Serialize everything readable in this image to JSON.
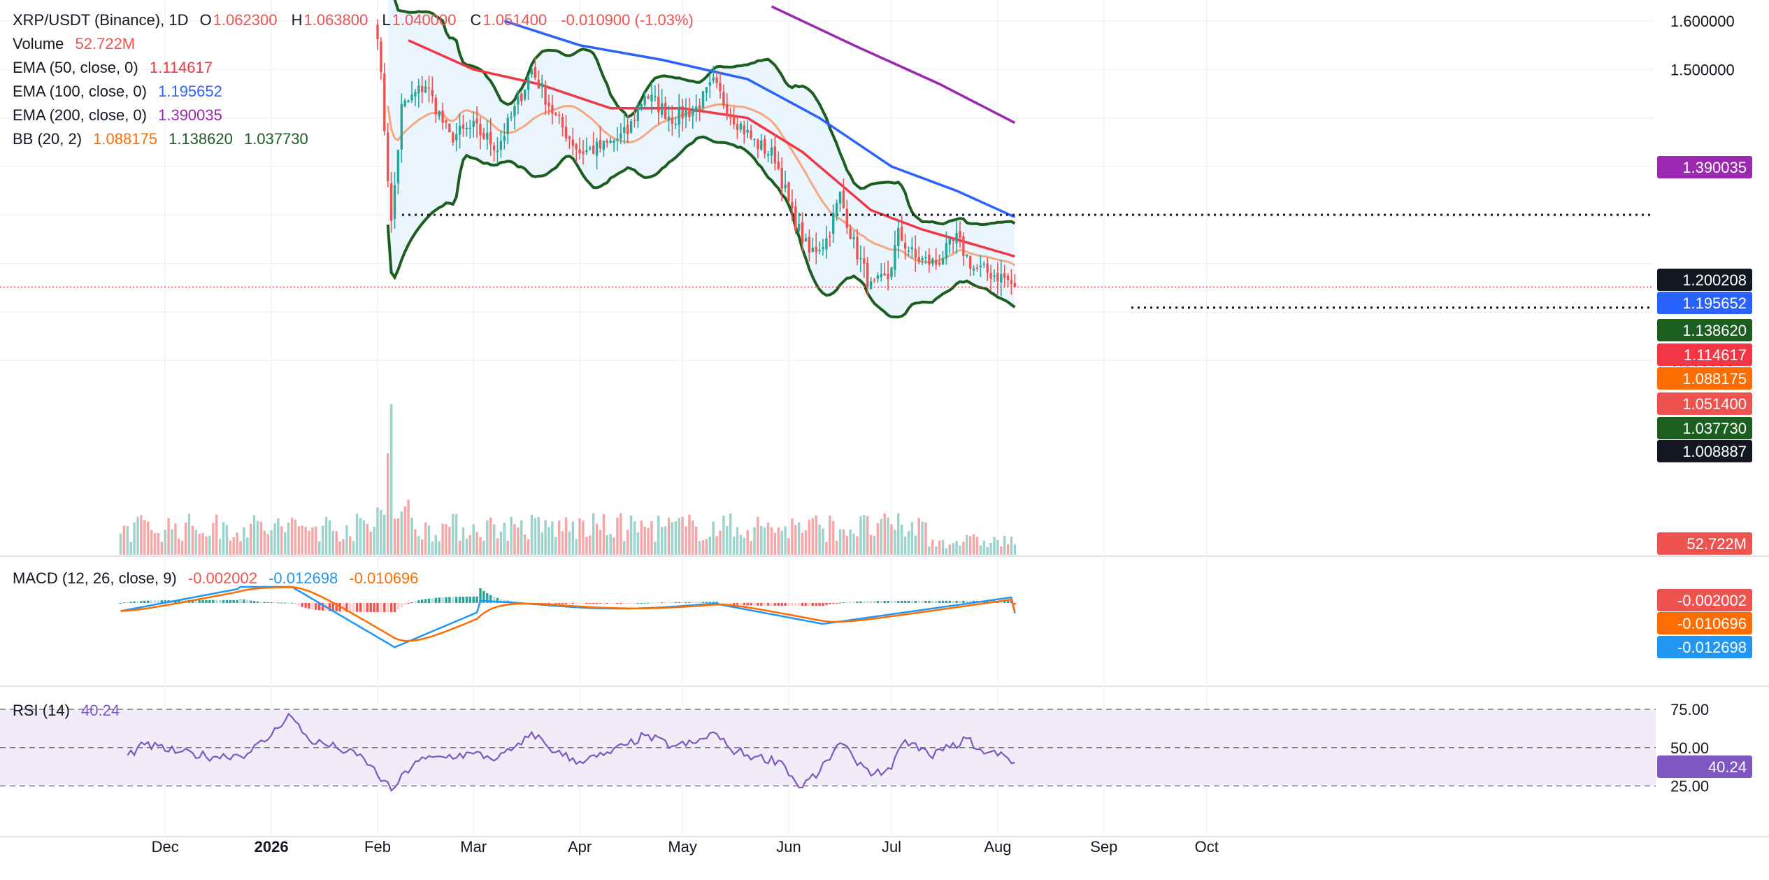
{
  "colors": {
    "up": "#26a69a",
    "down": "#ef5350",
    "ema50": "#f23645",
    "ema100": "#2962ff",
    "ema200": "#9c27b0",
    "bb_basis": "#f7a072",
    "bb_band": "#1b5e20",
    "bb_fill": "#e3f2fd",
    "macd": "#2196f3",
    "signal": "#ff6d00",
    "rsi": "#7e57c2",
    "rsi_fill": "#ede7f6",
    "text": "#131722",
    "grid": "#f0f3fa"
  },
  "header": {
    "symbol": "XRP/USDT (Binance), 1D",
    "o_label": "O",
    "o": "1.062300",
    "h_label": "H",
    "h": "1.063800",
    "l_label": "L",
    "l": "1.040000",
    "c_label": "C",
    "c": "1.051400",
    "change": "-0.010900 (-1.03%)",
    "volume_label": "Volume",
    "volume": "52.722M",
    "ema50_label": "EMA (50, close, 0)",
    "ema50": "1.114617",
    "ema100_label": "EMA (100, close, 0)",
    "ema100": "1.195652",
    "ema200_label": "EMA (200, close, 0)",
    "ema200": "1.390035",
    "bb_label": "BB (20, 2)",
    "bb_basis": "1.088175",
    "bb_upper": "1.138620",
    "bb_lower": "1.037730",
    "macd_label": "MACD (12, 26, close, 9)",
    "macd_hist": "-0.002002",
    "macd_line": "-0.012698",
    "macd_signal": "-0.010696",
    "rsi_label": "RSI (14)",
    "rsi": "40.24"
  },
  "chart_data": [
    {
      "type": "candlestick",
      "pane": "price",
      "x_start": "2026-02-01",
      "x_step_days": 1,
      "price_axis_ticks": [
        "1.600000",
        "1.500000",
        "1.300000",
        "0.900000"
      ],
      "ylim": [
        0.85,
        1.63
      ],
      "price_labels": [
        {
          "value": "1.390035",
          "color": "#9c27b0"
        },
        {
          "value": "1.200208",
          "color": "#131722"
        },
        {
          "value": "1.195652",
          "color": "#2962ff"
        },
        {
          "value": "1.138620",
          "color": "#1b5e20"
        },
        {
          "value": "1.114617",
          "color": "#f23645"
        },
        {
          "value": "1.088175",
          "color": "#ff6d00"
        },
        {
          "value": "1.051400",
          "color": "#ef5350"
        },
        {
          "value": "1.037730",
          "color": "#1b5e20"
        },
        {
          "value": "1.008887",
          "color": "#131722"
        }
      ],
      "horizontal_lines": [
        1.2002,
        1.0089
      ],
      "current_price": 1.0514,
      "volume_label": "52.722M",
      "key_closes": [
        [
          "2026-02-01",
          1.58
        ],
        [
          "2026-02-05",
          1.18
        ],
        [
          "2026-02-08",
          1.42
        ],
        [
          "2026-02-15",
          1.47
        ],
        [
          "2026-02-22",
          1.36
        ],
        [
          "2026-03-01",
          1.38
        ],
        [
          "2026-03-08",
          1.34
        ],
        [
          "2026-03-12",
          1.4
        ],
        [
          "2026-03-18",
          1.5
        ],
        [
          "2026-03-25",
          1.4
        ],
        [
          "2026-04-01",
          1.33
        ],
        [
          "2026-04-08",
          1.34
        ],
        [
          "2026-04-15",
          1.37
        ],
        [
          "2026-04-20",
          1.45
        ],
        [
          "2026-04-28",
          1.4
        ],
        [
          "2026-05-05",
          1.42
        ],
        [
          "2026-05-10",
          1.47
        ],
        [
          "2026-05-15",
          1.41
        ],
        [
          "2026-05-22",
          1.35
        ],
        [
          "2026-05-28",
          1.32
        ],
        [
          "2026-06-02",
          1.2
        ],
        [
          "2026-06-07",
          1.12
        ],
        [
          "2026-06-12",
          1.15
        ],
        [
          "2026-06-16",
          1.24
        ],
        [
          "2026-06-20",
          1.14
        ],
        [
          "2026-06-25",
          1.05
        ],
        [
          "2026-06-30",
          1.07
        ],
        [
          "2026-07-03",
          1.16
        ],
        [
          "2026-07-08",
          1.11
        ],
        [
          "2026-07-14",
          1.1
        ],
        [
          "2026-07-20",
          1.15
        ],
        [
          "2026-07-25",
          1.09
        ],
        [
          "2026-07-30",
          1.08
        ],
        [
          "2026-08-03",
          1.07
        ],
        [
          "2026-08-06",
          1.0514
        ]
      ]
    },
    {
      "type": "histogram",
      "pane": "macd",
      "series": [
        {
          "name": "MACD",
          "last": -0.012698
        },
        {
          "name": "Signal",
          "last": -0.010696
        },
        {
          "name": "Histogram",
          "last": -0.002002
        }
      ],
      "price_labels": [
        {
          "value": "-0.002002",
          "color": "#ef5350"
        },
        {
          "value": "-0.010696",
          "color": "#ff6d00"
        },
        {
          "value": "-0.012698",
          "color": "#2196f3"
        }
      ]
    },
    {
      "type": "line",
      "pane": "rsi",
      "levels": [
        75,
        50,
        25
      ],
      "level_labels": [
        "75.00",
        "50.00",
        "25.00"
      ],
      "last": 40.24,
      "last_label": "40.24",
      "key_values": [
        [
          "2025-11-20",
          45
        ],
        [
          "2025-11-25",
          52
        ],
        [
          "2025-12-05",
          47
        ],
        [
          "2025-12-15",
          44
        ],
        [
          "2025-12-25",
          46
        ],
        [
          "2026-01-01",
          58
        ],
        [
          "2026-01-06",
          72
        ],
        [
          "2026-01-12",
          55
        ],
        [
          "2026-01-20",
          50
        ],
        [
          "2026-01-28",
          43
        ],
        [
          "2026-02-05",
          22
        ],
        [
          "2026-02-12",
          41
        ],
        [
          "2026-02-20",
          44
        ],
        [
          "2026-03-01",
          46
        ],
        [
          "2026-03-08",
          43
        ],
        [
          "2026-03-15",
          52
        ],
        [
          "2026-03-18",
          60
        ],
        [
          "2026-03-25",
          47
        ],
        [
          "2026-04-01",
          41
        ],
        [
          "2026-04-08",
          45
        ],
        [
          "2026-04-15",
          52
        ],
        [
          "2026-04-20",
          58
        ],
        [
          "2026-04-28",
          51
        ],
        [
          "2026-05-05",
          53
        ],
        [
          "2026-05-10",
          60
        ],
        [
          "2026-05-15",
          49
        ],
        [
          "2026-05-22",
          44
        ],
        [
          "2026-05-30",
          41
        ],
        [
          "2026-06-04",
          24
        ],
        [
          "2026-06-10",
          34
        ],
        [
          "2026-06-16",
          53
        ],
        [
          "2026-06-20",
          43
        ],
        [
          "2026-06-26",
          33
        ],
        [
          "2026-07-01",
          36
        ],
        [
          "2026-07-05",
          55
        ],
        [
          "2026-07-12",
          45
        ],
        [
          "2026-07-18",
          50
        ],
        [
          "2026-07-23",
          56
        ],
        [
          "2026-07-28",
          46
        ],
        [
          "2026-08-02",
          47
        ],
        [
          "2026-08-06",
          40.24
        ]
      ]
    }
  ],
  "time_axis": [
    {
      "label": "Dec",
      "date": "2025-12-01"
    },
    {
      "label": "2026",
      "date": "2026-01-01",
      "bold": true
    },
    {
      "label": "Feb",
      "date": "2026-02-01"
    },
    {
      "label": "Mar",
      "date": "2026-03-01"
    },
    {
      "label": "Apr",
      "date": "2026-04-01"
    },
    {
      "label": "May",
      "date": "2026-05-01"
    },
    {
      "label": "Jun",
      "date": "2026-06-01"
    },
    {
      "label": "Jul",
      "date": "2026-07-01"
    },
    {
      "label": "Aug",
      "date": "2026-08-01"
    },
    {
      "label": "Sep",
      "date": "2026-09-01"
    },
    {
      "label": "Oct",
      "date": "2026-10-01"
    }
  ]
}
